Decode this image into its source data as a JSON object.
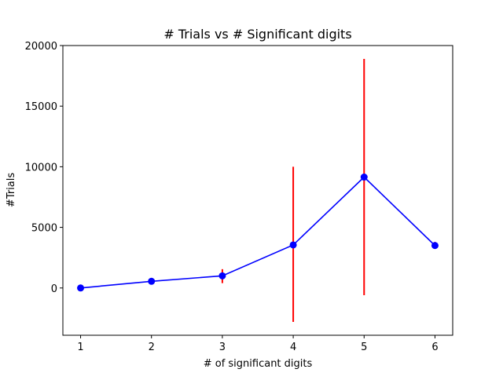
{
  "chart_data": {
    "type": "line",
    "title": "# Trials vs # Significant digits",
    "xlabel": "# of significant digits",
    "ylabel": "#Trials",
    "x": [
      1,
      2,
      3,
      4,
      5,
      6
    ],
    "series": [
      {
        "values": [
          0,
          550,
          1000,
          3550,
          9150,
          3500
        ],
        "error_low": [
          -20,
          380,
          400,
          -2800,
          -600,
          3250
        ],
        "error_high": [
          20,
          750,
          1550,
          10000,
          18900,
          3800
        ],
        "line_color": "#0000ff",
        "error_color": "#ff0000"
      }
    ],
    "xlim": [
      0.75,
      6.25
    ],
    "ylim": [
      -3900,
      20000
    ],
    "xticks": [
      1,
      2,
      3,
      4,
      5,
      6
    ],
    "yticks": [
      0,
      5000,
      10000,
      15000,
      20000
    ],
    "grid": false,
    "legend": "none"
  }
}
